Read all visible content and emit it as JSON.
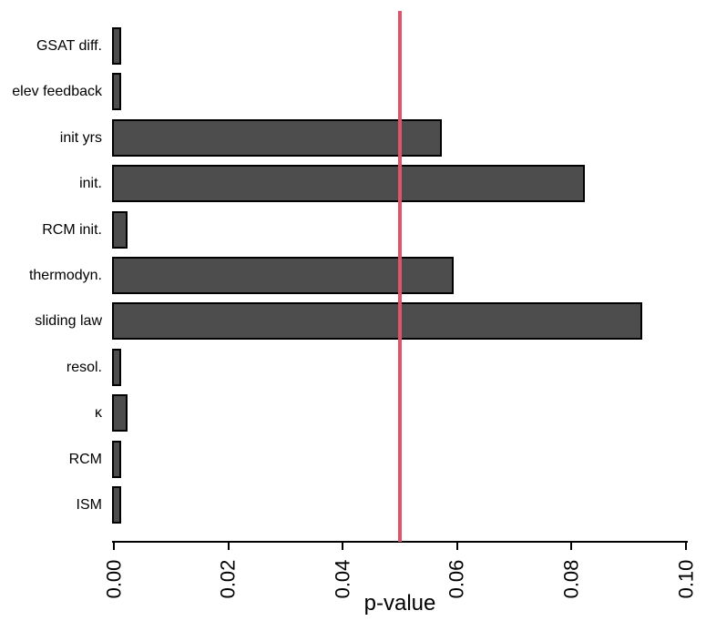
{
  "chart_data": {
    "type": "bar",
    "orientation": "horizontal",
    "title": "",
    "xlabel": "p-value",
    "ylabel": "",
    "categories": [
      "GSAT diff.",
      "elev feedback",
      "init yrs",
      "init.",
      "RCM init.",
      "thermodyn.",
      "sliding law",
      "resol.",
      "κ",
      "RCM",
      "ISM"
    ],
    "values": [
      0.001,
      0.001,
      0.057,
      0.082,
      0.002,
      0.059,
      0.092,
      0.001,
      0.002,
      0.001,
      0.001
    ],
    "xlim": [
      0,
      0.1
    ],
    "xticks": [
      0,
      0.02,
      0.04,
      0.06,
      0.08,
      0.1
    ],
    "xtick_labels": [
      "0.00",
      "0.02",
      "0.04",
      "0.06",
      "0.08",
      "0.10"
    ],
    "grid": false,
    "reference_line": {
      "axis": "x",
      "value": 0.05,
      "color": "#DF536B"
    },
    "colors": {
      "bar_fill": "#4D4D4D",
      "bar_border": "#000000",
      "axis": "#000000",
      "text": "#000000",
      "background": "#FFFFFF"
    }
  }
}
